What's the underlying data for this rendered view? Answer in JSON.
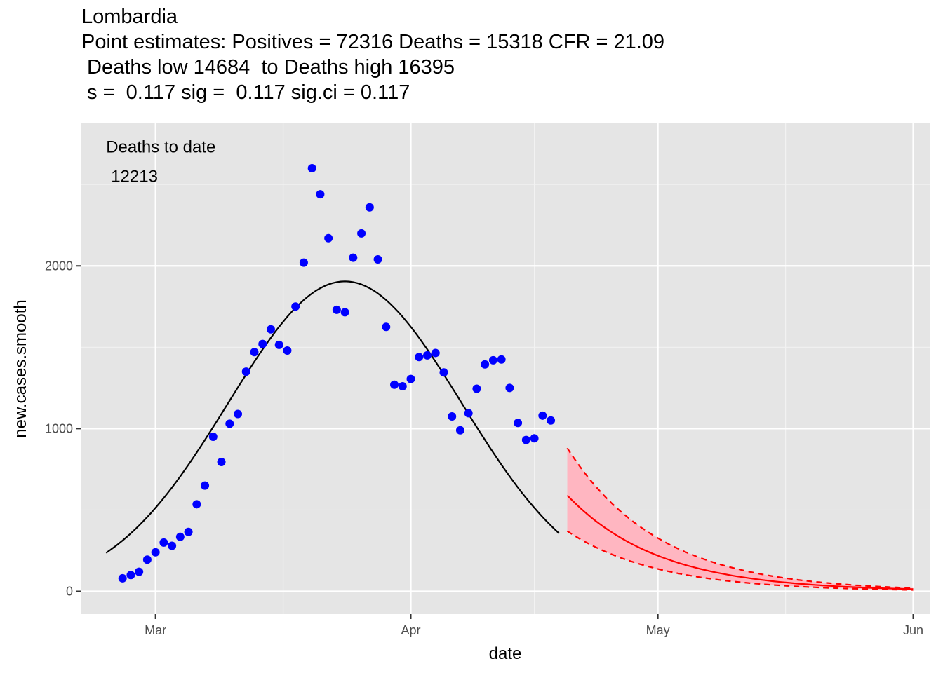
{
  "chart_data": {
    "type": "scatter",
    "title": "Lombardia",
    "subtitle_lines": [
      "Point estimates: Positives = 72316 Deaths = 15318 CFR = 21.09",
      " Deaths low 14684  to Deaths high 16395",
      " s =  0.117 sig =  0.117 sig.ci = 0.117"
    ],
    "xlabel": "date",
    "ylabel": "new.cases.smooth",
    "x_type": "date",
    "xlim": [
      "2020-02-21",
      "2020-06-03"
    ],
    "ylim": [
      -140,
      2880
    ],
    "x_ticks": [
      {
        "date": "2020-03-01",
        "label": "Mar"
      },
      {
        "date": "2020-04-01",
        "label": "Apr"
      },
      {
        "date": "2020-05-01",
        "label": "May"
      },
      {
        "date": "2020-06-01",
        "label": "Jun"
      }
    ],
    "y_ticks": [
      {
        "value": 0,
        "label": "0"
      },
      {
        "value": 1000,
        "label": "1000"
      },
      {
        "value": 2000,
        "label": "2000"
      }
    ],
    "grid": true,
    "annotation": {
      "line1": "Deaths to date",
      "line2": "12213",
      "x": "2020-02-24",
      "y": 2550
    },
    "colors": {
      "panel": "#e5e5e5",
      "grid_major": "#ffffff",
      "grid_minor": "#f2f2f2",
      "points": "#0000ff",
      "fit_line": "#000000",
      "forecast_line": "#ff0000",
      "forecast_ribbon": "#ffb6c1"
    },
    "points": {
      "name": "observed",
      "x": [
        "2020-02-26",
        "2020-02-27",
        "2020-02-28",
        "2020-02-29",
        "2020-03-01",
        "2020-03-02",
        "2020-03-03",
        "2020-03-04",
        "2020-03-05",
        "2020-03-06",
        "2020-03-07",
        "2020-03-08",
        "2020-03-09",
        "2020-03-10",
        "2020-03-11",
        "2020-03-12",
        "2020-03-13",
        "2020-03-14",
        "2020-03-15",
        "2020-03-16",
        "2020-03-17",
        "2020-03-18",
        "2020-03-19",
        "2020-03-20",
        "2020-03-21",
        "2020-03-22",
        "2020-03-23",
        "2020-03-24",
        "2020-03-25",
        "2020-03-26",
        "2020-03-27",
        "2020-03-28",
        "2020-03-29",
        "2020-03-30",
        "2020-03-31",
        "2020-04-01",
        "2020-04-02",
        "2020-04-03",
        "2020-04-04",
        "2020-04-05",
        "2020-04-06",
        "2020-04-07",
        "2020-04-08",
        "2020-04-09",
        "2020-04-10",
        "2020-04-11",
        "2020-04-12",
        "2020-04-13",
        "2020-04-14",
        "2020-04-15",
        "2020-04-16",
        "2020-04-17",
        "2020-04-18",
        "2020-04-19"
      ],
      "y": [
        80,
        100,
        120,
        195,
        240,
        300,
        280,
        335,
        365,
        535,
        650,
        950,
        795,
        1030,
        1090,
        1350,
        1470,
        1520,
        1610,
        1515,
        1480,
        1750,
        2020,
        2600,
        2440,
        2170,
        1730,
        1715,
        2050,
        2200,
        2360,
        2040,
        1625,
        1270,
        1260,
        1305,
        1440,
        1450,
        1465,
        1345,
        1075,
        990,
        1095,
        1245,
        1395,
        1420,
        1425,
        1250,
        1035,
        930,
        940,
        1080,
        1050,
        null
      ]
    },
    "fit_curve": {
      "name": "fit",
      "x_start": "2020-02-24",
      "x_end": "2020-04-19",
      "peak_date": "2020-03-24",
      "peak_value": 1905,
      "sd_days": 14.2
    },
    "forecast": {
      "name": "forecast",
      "x_start": "2020-04-20",
      "x_end": "2020-06-01",
      "center_start": 590,
      "low_start": 370,
      "high_start": 880,
      "decay_per_day": 0.09
    }
  }
}
